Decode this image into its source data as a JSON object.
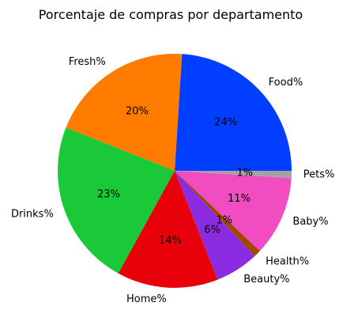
{
  "chart_data": {
    "type": "pie",
    "title": "Porcentaje de compras por departamento",
    "start_angle_deg": 0,
    "direction": "counterclockwise",
    "slices": [
      {
        "label": "Food%",
        "value": 24,
        "pct_text": "24%",
        "color": "#023eff"
      },
      {
        "label": "Fresh%",
        "value": 20,
        "pct_text": "20%",
        "color": "#ff7c00"
      },
      {
        "label": "Drinks%",
        "value": 23,
        "pct_text": "23%",
        "color": "#1ac938"
      },
      {
        "label": "Home%",
        "value": 14,
        "pct_text": "14%",
        "color": "#e8000b"
      },
      {
        "label": "Beauty%",
        "value": 6,
        "pct_text": "6%",
        "color": "#8b2be2"
      },
      {
        "label": "Health%",
        "value": 1,
        "pct_text": "1%",
        "color": "#9f4800"
      },
      {
        "label": "Baby%",
        "value": 11,
        "pct_text": "11%",
        "color": "#f14cc1"
      },
      {
        "label": "Pets%",
        "value": 1,
        "pct_text": "1%",
        "color": "#a3a3a3"
      }
    ]
  }
}
